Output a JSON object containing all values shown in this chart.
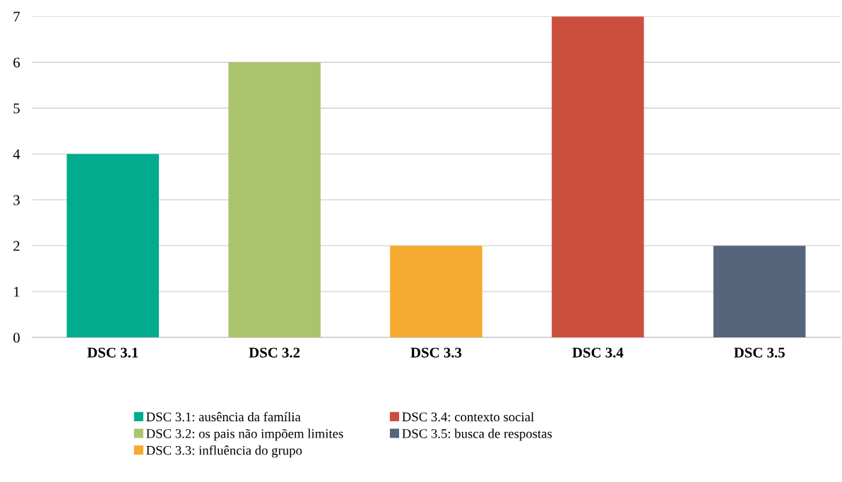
{
  "chart_data": {
    "type": "bar",
    "categories": [
      "DSC 3.1",
      "DSC 3.2",
      "DSC 3.3",
      "DSC 3.4",
      "DSC 3.5"
    ],
    "series": [
      {
        "name": "DSC 3.1: ausência da família",
        "color": "#00ab8e",
        "values": [
          4,
          null,
          null,
          null,
          null
        ]
      },
      {
        "name": "DSC 3.2: os pais não impõem limites",
        "color": "#a9c46c",
        "values": [
          null,
          6,
          null,
          null,
          null
        ]
      },
      {
        "name": "DSC 3.3: influência do grupo",
        "color": "#f4a92f",
        "values": [
          null,
          null,
          2,
          null,
          null
        ]
      },
      {
        "name": "DSC 3.4: contexto social",
        "color": "#cb4f3d",
        "values": [
          null,
          null,
          null,
          7,
          null
        ]
      },
      {
        "name": "DSC 3.5: busca de respostas",
        "color": "#55657b",
        "values": [
          null,
          null,
          null,
          null,
          2
        ]
      }
    ],
    "ylim": [
      0,
      7
    ],
    "yticks": [
      0,
      1,
      2,
      3,
      4,
      5,
      6,
      7
    ],
    "grid": "y",
    "legend": "bottom"
  }
}
